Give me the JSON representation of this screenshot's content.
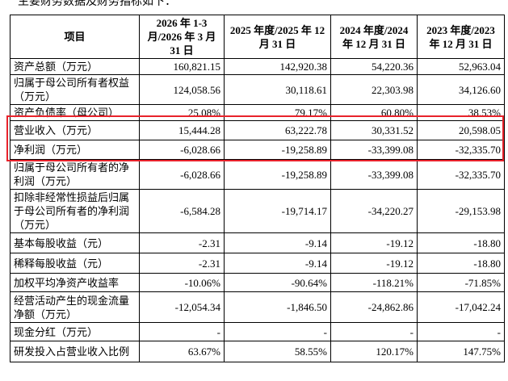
{
  "intro": "主要财务数据及财务指标如下：",
  "table": {
    "header": [
      "项目",
      "2026 年 1-3 月/2026 年 3 月 31 日",
      "2025 年度/2025 年 12 月 31 日",
      "2024 年度/2024 年 12 月 31 日",
      "2023 年度/2023 年 12 月 31 日"
    ],
    "rows": [
      [
        "资产总额（万元）",
        "160,821.15",
        "142,920.38",
        "54,220.36",
        "52,963.04"
      ],
      [
        "归属于母公司所有者权益（万元）",
        "124,058.56",
        "30,118.61",
        "22,303.98",
        "34,126.60"
      ],
      [
        "资产负债率（母公司）",
        "25.08%",
        "79.17%",
        "60.80%",
        "38.53%"
      ],
      [
        "营业收入（万元）",
        "15,444.28",
        "63,222.78",
        "30,331.52",
        "20,598.05"
      ],
      [
        "净利润（万元）",
        "-6,028.66",
        "-19,258.89",
        "-33,399.08",
        "-32,335.70"
      ],
      [
        "归属于母公司所有者的净利润（万元）",
        "-6,028.66",
        "-19,258.89",
        "-33,399.08",
        "-32,335.70"
      ],
      [
        "扣除非经常性损益后归属于母公司所有者的净利润（万元）",
        "-6,584.28",
        "-19,714.17",
        "-34,220.27",
        "-29,153.98"
      ],
      [
        "基本每股收益（元）",
        "-2.31",
        "-9.14",
        "-19.12",
        "-18.80"
      ],
      [
        "稀释每股收益（元）",
        "-2.31",
        "-9.14",
        "-19.12",
        "-18.80"
      ],
      [
        "加权平均净资产收益率",
        "-10.06%",
        "-90.64%",
        "-118.21%",
        "-71.85%"
      ],
      [
        "经营活动产生的现金流量净额（万元）",
        "-12,054.34",
        "-1,846.50",
        "-24,862.86",
        "-17,042.24"
      ],
      [
        "现金分红（万元）",
        "-",
        "-",
        "-",
        "-"
      ],
      [
        "研发投入占营业收入比例",
        "63.67%",
        "58.55%",
        "120.17%",
        "147.75%"
      ]
    ]
  }
}
